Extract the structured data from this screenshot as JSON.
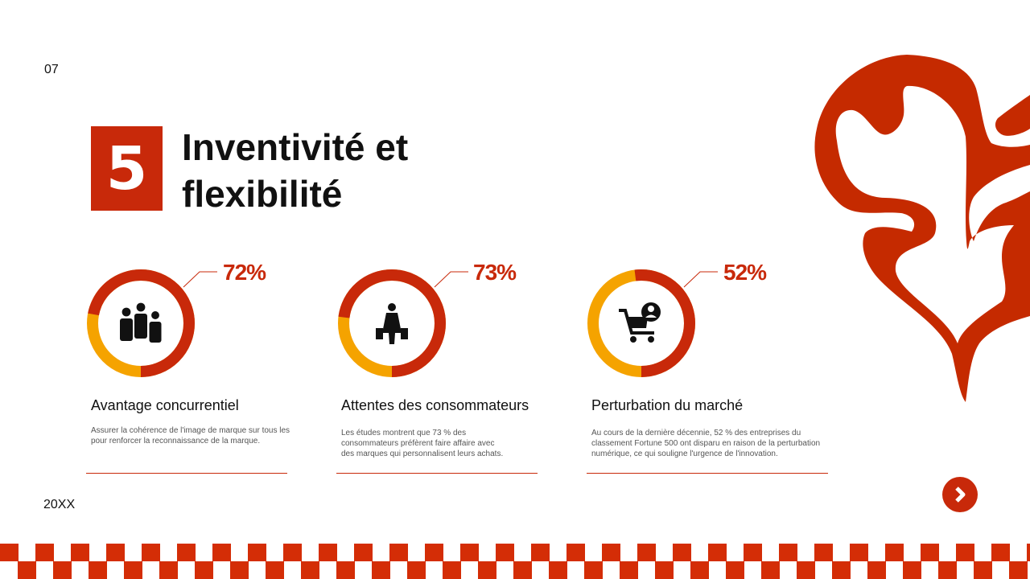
{
  "page_number": "07",
  "footer_year": "20XX",
  "section_number": "5",
  "title_lines": [
    "Inventivité et",
    "flexibilité"
  ],
  "colors": {
    "accent": "#c8290a",
    "secondary": "#f5a300"
  },
  "cards": [
    {
      "percent_label": "72%",
      "value": 72,
      "icon": "group-people-icon",
      "title": "Avantage concurrentiel",
      "description": [
        "Assurer la cohérence de l'image de marque sur tous les",
        "pour renforcer la reconnaissance de la marque."
      ]
    },
    {
      "percent_label": "73%",
      "value": 73,
      "icon": "shopper-bags-icon",
      "title": "Attentes des consommateurs",
      "description": [
        "Les études montrent que 73 % des",
        "consommateurs préfèrent faire affaire avec",
        "des marques qui personnalisent leurs achats."
      ]
    },
    {
      "percent_label": "52%",
      "value": 52,
      "icon": "shopping-cart-user-icon",
      "title": "Perturbation du marché",
      "description": [
        "Au cours de la dernière décennie, 52 % des entreprises du",
        "classement Fortune 500 ont disparu en raison de la perturbation",
        "numérique, ce qui souligne l'urgence de l'innovation."
      ]
    }
  ],
  "next_button": "chevron-right-icon"
}
